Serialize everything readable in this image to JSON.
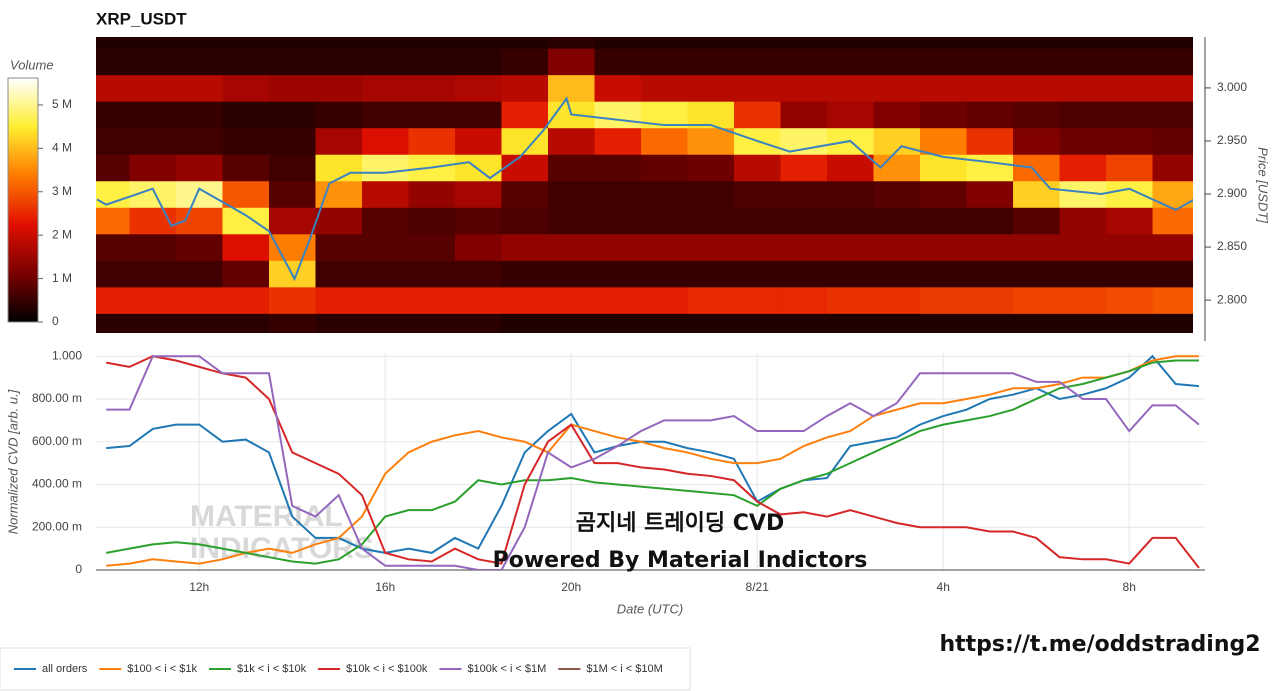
{
  "chart_data": [
    {
      "type": "heatmap",
      "title": "XRP_USDT",
      "x_bins": [
        9.5,
        10.5,
        11.5,
        12.5,
        13.5,
        14.5,
        15.5,
        16.5,
        17.5,
        18.5,
        19.5,
        20.5,
        21.5,
        22.5,
        23.5,
        24.5,
        25.5,
        26.5,
        27.5,
        28.5,
        29.5,
        30.5,
        31.5,
        32.5,
        33.5
      ],
      "y_bins": [
        2.7625,
        2.7875,
        2.8125,
        2.8375,
        2.8625,
        2.8875,
        2.9125,
        2.9375,
        2.9625,
        2.9875,
        3.0125,
        3.0375,
        3.0625
      ],
      "values": [
        [
          0.4,
          2.4,
          0.6,
          0.8,
          3.2,
          4.6,
          0.8,
          0.6,
          0.5,
          1.8,
          0.4,
          0.3
        ],
        [
          0.4,
          2.4,
          0.6,
          0.8,
          2.6,
          4.8,
          1.2,
          0.6,
          0.5,
          1.8,
          0.4,
          0.3
        ],
        [
          0.4,
          2.4,
          0.6,
          0.9,
          2.8,
          5.0,
          1.4,
          0.6,
          0.5,
          1.8,
          0.4,
          0.3
        ],
        [
          0.4,
          2.4,
          0.9,
          2.2,
          4.6,
          3.0,
          0.8,
          0.5,
          0.4,
          1.6,
          0.4,
          0.3
        ],
        [
          0.5,
          2.6,
          4.2,
          3.4,
          1.6,
          0.8,
          0.6,
          0.5,
          0.4,
          1.5,
          0.4,
          0.3
        ],
        [
          0.4,
          2.4,
          0.6,
          0.8,
          1.4,
          3.6,
          4.4,
          1.6,
          0.5,
          1.5,
          0.4,
          0.3
        ],
        [
          0.4,
          2.4,
          0.6,
          0.8,
          0.8,
          1.8,
          4.8,
          2.2,
          0.6,
          1.6,
          0.4,
          0.3
        ],
        [
          0.4,
          2.4,
          0.6,
          0.8,
          0.7,
          1.4,
          4.6,
          2.6,
          0.6,
          1.6,
          0.4,
          0.3
        ],
        [
          0.4,
          2.4,
          0.6,
          1.2,
          0.8,
          1.6,
          4.4,
          2.0,
          0.6,
          1.7,
          0.4,
          0.3
        ],
        [
          0.3,
          2.4,
          0.5,
          1.4,
          0.7,
          0.8,
          2.0,
          4.4,
          2.4,
          1.8,
          0.5,
          0.3
        ],
        [
          0.3,
          2.4,
          0.5,
          1.4,
          0.6,
          0.6,
          0.8,
          1.8,
          4.4,
          4.0,
          1.2,
          0.4
        ],
        [
          0.3,
          2.4,
          0.5,
          1.4,
          0.6,
          0.6,
          0.8,
          2.4,
          4.8,
          2.0,
          0.5,
          0.3
        ],
        [
          0.3,
          2.4,
          0.5,
          1.4,
          0.6,
          0.6,
          0.9,
          3.2,
          4.6,
          1.8,
          0.5,
          0.3
        ],
        [
          0.3,
          2.5,
          0.5,
          1.4,
          0.6,
          0.6,
          1.0,
          3.6,
          4.4,
          1.8,
          0.5,
          0.3
        ],
        [
          0.3,
          2.5,
          0.5,
          1.4,
          0.6,
          0.7,
          1.8,
          4.6,
          2.6,
          1.8,
          0.5,
          0.3
        ],
        [
          0.3,
          2.5,
          0.5,
          1.4,
          0.6,
          0.7,
          2.4,
          4.8,
          1.4,
          1.8,
          0.5,
          0.3
        ],
        [
          0.3,
          2.6,
          0.5,
          1.4,
          0.6,
          0.7,
          2.0,
          4.6,
          1.6,
          1.8,
          0.5,
          0.3
        ],
        [
          0.3,
          2.6,
          0.5,
          1.4,
          0.6,
          0.8,
          3.6,
          4.2,
          1.2,
          1.8,
          0.5,
          0.3
        ],
        [
          0.3,
          2.7,
          0.5,
          1.4,
          0.6,
          0.9,
          4.4,
          3.4,
          1.0,
          1.8,
          0.5,
          0.3
        ],
        [
          0.3,
          2.7,
          0.5,
          1.4,
          0.6,
          1.2,
          4.6,
          2.6,
          0.9,
          1.8,
          0.5,
          0.3
        ],
        [
          0.3,
          2.8,
          0.5,
          1.4,
          0.8,
          4.2,
          3.2,
          1.2,
          0.8,
          1.8,
          0.5,
          0.3
        ],
        [
          0.3,
          2.8,
          0.5,
          1.4,
          1.4,
          4.8,
          2.4,
          1.0,
          0.7,
          1.8,
          0.5,
          0.3
        ],
        [
          0.3,
          2.9,
          0.5,
          1.4,
          1.6,
          4.6,
          2.8,
          1.0,
          0.7,
          1.8,
          0.5,
          0.3
        ],
        [
          0.3,
          3.0,
          0.5,
          1.4,
          3.2,
          3.8,
          1.4,
          0.9,
          0.7,
          1.8,
          0.5,
          0.3
        ]
      ],
      "colorscale": [
        "#000000",
        "#7a0000",
        "#e01000",
        "#ff7a00",
        "#ffee30",
        "#ffffff"
      ],
      "colorbar": {
        "title": "Volume",
        "lim": [
          0,
          5.62
        ],
        "ticks": [
          0,
          {
            "value": 1,
            "label": "1 M"
          },
          {
            "value": 2,
            "label": "2 M"
          },
          {
            "value": 3,
            "label": "3 M"
          },
          {
            "value": 4,
            "label": "4 M"
          },
          {
            "value": 5,
            "label": "5 M"
          }
        ]
      },
      "xlim": [
        9.78,
        33.37
      ],
      "ylim": [
        2.769,
        3.048
      ],
      "yticks": [
        {
          "value": 2.8,
          "label": "2.800"
        },
        {
          "value": 2.85,
          "label": "2.850"
        },
        {
          "value": 2.9,
          "label": "2.900"
        },
        {
          "value": 2.95,
          "label": "2.950"
        },
        {
          "value": 3.0,
          "label": "3.000"
        }
      ],
      "y_label": "Price [USDT]",
      "line": {
        "color": "#3b82c0",
        "x": [
          9.8,
          10,
          11,
          11.4,
          11.7,
          12,
          13,
          13.5,
          14.05,
          14.4,
          14.8,
          15.25,
          16,
          17,
          17.8,
          18.25,
          18.9,
          19.4,
          19.9,
          20,
          21,
          22,
          23,
          24,
          24.7,
          25.35,
          26,
          26.65,
          27.1,
          28,
          29,
          29.9,
          30.3,
          31.4,
          32,
          33,
          33.4
        ],
        "values": [
          2.895,
          2.89,
          2.905,
          2.87,
          2.875,
          2.905,
          2.88,
          2.865,
          2.82,
          2.86,
          2.91,
          2.92,
          2.92,
          2.925,
          2.93,
          2.915,
          2.935,
          2.96,
          2.99,
          2.975,
          2.97,
          2.965,
          2.965,
          2.95,
          2.94,
          2.945,
          2.95,
          2.925,
          2.945,
          2.935,
          2.93,
          2.925,
          2.905,
          2.9,
          2.905,
          2.885,
          2.895
        ]
      }
    },
    {
      "type": "line",
      "x": [
        10,
        10.5,
        11,
        11.5,
        12,
        12.5,
        13,
        13.5,
        14,
        14.5,
        15,
        15.5,
        16,
        16.5,
        17,
        17.5,
        18,
        18.5,
        19,
        19.5,
        20,
        20.5,
        21,
        21.5,
        22,
        22.5,
        23,
        23.5,
        24,
        24.5,
        25,
        25.5,
        26,
        26.5,
        27,
        27.5,
        28,
        28.5,
        29,
        29.5,
        30,
        30.5,
        31,
        31.5,
        32,
        32.5,
        33,
        33.5
      ],
      "series": [
        {
          "name": "all orders",
          "color": "#1f77b4",
          "values": [
            0.57,
            0.58,
            0.66,
            0.68,
            0.68,
            0.6,
            0.61,
            0.55,
            0.25,
            0.15,
            0.15,
            0.1,
            0.08,
            0.1,
            0.08,
            0.15,
            0.1,
            0.3,
            0.55,
            0.65,
            0.73,
            0.55,
            0.58,
            0.6,
            0.6,
            0.57,
            0.55,
            0.52,
            0.32,
            0.38,
            0.42,
            0.43,
            0.58,
            0.6,
            0.62,
            0.68,
            0.72,
            0.75,
            0.8,
            0.82,
            0.85,
            0.8,
            0.82,
            0.85,
            0.9,
            1.0,
            0.87,
            0.86
          ]
        },
        {
          "name": "$100 < i < $1k",
          "color": "#ff7f0e",
          "values": [
            0.02,
            0.03,
            0.05,
            0.04,
            0.03,
            0.05,
            0.08,
            0.1,
            0.08,
            0.12,
            0.15,
            0.25,
            0.45,
            0.55,
            0.6,
            0.63,
            0.65,
            0.62,
            0.6,
            0.55,
            0.68,
            0.65,
            0.62,
            0.6,
            0.57,
            0.55,
            0.52,
            0.5,
            0.5,
            0.52,
            0.58,
            0.62,
            0.65,
            0.72,
            0.75,
            0.78,
            0.78,
            0.8,
            0.82,
            0.85,
            0.85,
            0.87,
            0.9,
            0.9,
            0.93,
            0.98,
            1.0,
            1.0
          ]
        },
        {
          "name": "$1k < i < $10k",
          "color": "#2ca02c",
          "values": [
            0.08,
            0.1,
            0.12,
            0.13,
            0.12,
            0.1,
            0.08,
            0.06,
            0.04,
            0.03,
            0.05,
            0.12,
            0.25,
            0.28,
            0.28,
            0.32,
            0.42,
            0.4,
            0.42,
            0.42,
            0.43,
            0.41,
            0.4,
            0.39,
            0.38,
            0.37,
            0.36,
            0.35,
            0.3,
            0.38,
            0.42,
            0.45,
            0.5,
            0.55,
            0.6,
            0.65,
            0.68,
            0.7,
            0.72,
            0.75,
            0.8,
            0.85,
            0.87,
            0.9,
            0.93,
            0.97,
            0.98,
            0.98
          ]
        },
        {
          "name": "$10k < i < $100k",
          "color": "#d62728",
          "values": [
            0.97,
            0.95,
            1.0,
            0.98,
            0.95,
            0.92,
            0.9,
            0.8,
            0.55,
            0.5,
            0.45,
            0.35,
            0.08,
            0.05,
            0.04,
            0.1,
            0.05,
            0.03,
            0.4,
            0.6,
            0.68,
            0.5,
            0.5,
            0.48,
            0.47,
            0.45,
            0.44,
            0.42,
            0.32,
            0.26,
            0.27,
            0.25,
            0.28,
            0.25,
            0.22,
            0.2,
            0.2,
            0.2,
            0.18,
            0.18,
            0.15,
            0.06,
            0.05,
            0.05,
            0.03,
            0.15,
            0.15,
            0.01
          ]
        },
        {
          "name": "$100k < i < $1M",
          "color": "#9467bd",
          "values": [
            0.75,
            0.75,
            1.0,
            1.0,
            1.0,
            0.92,
            0.92,
            0.92,
            0.3,
            0.25,
            0.35,
            0.1,
            0.02,
            0.02,
            0.02,
            0.02,
            0.0,
            0.0,
            0.2,
            0.55,
            0.48,
            0.52,
            0.58,
            0.65,
            0.7,
            0.7,
            0.7,
            0.72,
            0.65,
            0.65,
            0.65,
            0.72,
            0.78,
            0.72,
            0.78,
            0.92,
            0.92,
            0.92,
            0.92,
            0.92,
            0.88,
            0.88,
            0.8,
            0.8,
            0.65,
            0.77,
            0.77,
            0.68
          ]
        },
        {
          "name": "$1M < i < $10M",
          "color": "#8c564b",
          "values": [
            null,
            null,
            null,
            null,
            null,
            null,
            null,
            null,
            null,
            null,
            null,
            null,
            null,
            null,
            null,
            null,
            null,
            null,
            null,
            null,
            null,
            null,
            null,
            null,
            null,
            null,
            null,
            null,
            null,
            null,
            null,
            null,
            null,
            null,
            null,
            null,
            null,
            null,
            null,
            null,
            null,
            null,
            null,
            null,
            null,
            null,
            null,
            null
          ]
        }
      ],
      "xlim": [
        9.78,
        33.63
      ],
      "xticks": [
        {
          "value": 12,
          "label": "12h"
        },
        {
          "value": 16,
          "label": "16h"
        },
        {
          "value": 20,
          "label": "20h"
        },
        {
          "value": 24,
          "label": "8/21"
        },
        {
          "value": 28,
          "label": "4h"
        },
        {
          "value": 32,
          "label": "8h"
        }
      ],
      "ylim": [
        0,
        1.015
      ],
      "yticks": [
        0,
        {
          "value": 0.2,
          "label": "200.00 m"
        },
        {
          "value": 0.4,
          "label": "400.00 m"
        },
        {
          "value": 0.6,
          "label": "600.00 m"
        },
        {
          "value": 0.8,
          "label": "800.00 m"
        },
        {
          "value": 1.0,
          "label": "1.000"
        }
      ],
      "grid": true,
      "x_label": "Date (UTC)",
      "y_label": "Normalized CVD [arb. u.]",
      "legend": "bottom-left",
      "watermark": [
        "MATERIAL",
        "INDICATORS"
      ],
      "annotations": [
        "곰지네 트레이딩 CVD",
        "Powered By Material Indictors"
      ]
    }
  ],
  "link": "https://t.me/oddstrading2"
}
